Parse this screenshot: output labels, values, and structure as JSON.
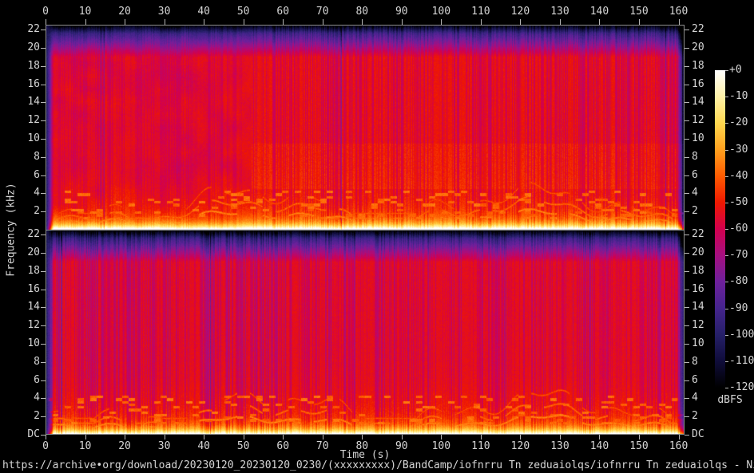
{
  "figure": {
    "bg": "#000000",
    "axis_color": "#8f8f8f",
    "tick_color": "#b8b8b8",
    "text_color": "#d6d6d6"
  },
  "top_axis": {
    "ticks": [
      "0",
      "10",
      "20",
      "30",
      "40",
      "50",
      "60",
      "70",
      "80",
      "90",
      "100",
      "110",
      "120",
      "130",
      "140",
      "150",
      "160"
    ]
  },
  "bottom_axis": {
    "label": "Time (s)",
    "ticks": [
      "0",
      "10",
      "20",
      "30",
      "40",
      "50",
      "60",
      "70",
      "80",
      "90",
      "100",
      "110",
      "120",
      "130",
      "140",
      "150",
      "160"
    ]
  },
  "freq_axis": {
    "label": "Frequency (kHz)",
    "channel1_ticks": [
      "22",
      "20",
      "18",
      "16",
      "14",
      "12",
      "10",
      "8",
      "6",
      "4",
      "2"
    ],
    "channel2_ticks": [
      "22",
      "20",
      "18",
      "16",
      "14",
      "12",
      "10",
      "8",
      "6",
      "4",
      "2",
      "DC"
    ]
  },
  "colorbar": {
    "unit_label": "dBFS",
    "ticks": [
      "+0",
      "-10",
      "-20",
      "-30",
      "-40",
      "-50",
      "-60",
      "-70",
      "-80",
      "-90",
      "-100",
      "-110",
      "-120"
    ]
  },
  "footer": {
    "file_url": "https://archive•org/download/20230120_20230120_0230/(xxxxxxxxx)/BandCamp/iofnrru Tn zeduaiolqs/iofnrru Tn zeduaiolqs - Nidgithm•flac"
  },
  "chart_data": {
    "type": "heatmap",
    "subtype": "audio-spectrogram",
    "channels": 2,
    "x": {
      "label": "Time (s)",
      "min": 0,
      "max": 161.5,
      "ticks": [
        0,
        10,
        20,
        30,
        40,
        50,
        60,
        70,
        80,
        90,
        100,
        110,
        120,
        130,
        140,
        150,
        160
      ]
    },
    "y": {
      "label": "Frequency (kHz)",
      "min": 0,
      "max": 22.05,
      "ticks": [
        22,
        20,
        18,
        16,
        14,
        12,
        10,
        8,
        6,
        4,
        2
      ],
      "dc_label": "DC"
    },
    "z": {
      "label": "dBFS",
      "min": -120,
      "max": 0,
      "ticks": [
        0,
        -10,
        -20,
        -30,
        -40,
        -50,
        -60,
        -70,
        -80,
        -90,
        -100,
        -110,
        -120
      ]
    },
    "colormap_stops": [
      [
        0,
        "#ffffff"
      ],
      [
        -10,
        "#fff2a8"
      ],
      [
        -20,
        "#ffd84f"
      ],
      [
        -30,
        "#ffa01e"
      ],
      [
        -40,
        "#ff5b00"
      ],
      [
        -50,
        "#ef1800"
      ],
      [
        -60,
        "#d2004e"
      ],
      [
        -70,
        "#a60f80"
      ],
      [
        -80,
        "#6e209c"
      ],
      [
        -90,
        "#45248d"
      ],
      [
        -100,
        "#251f68"
      ],
      [
        -110,
        "#0f0c3a"
      ],
      [
        -120,
        "#000000"
      ]
    ],
    "content_summary": "Two stacked channel spectrograms of the same track: dense red energy (~-50 dBFS) across 0-20 kHz with purple vertical beat striping; bright yellow/white bass band below ~1 kHz; orange melodic traces between 1-4.5 kHz; dark purple band above ~19.5 kHz; quiet dark start (~0-2 s) and fade-out after ~159.4 s; texture becomes more sharply striped in the top channel after ~52 s.",
    "render": {
      "seed": 7,
      "base_db": -51,
      "stripe_db": 26,
      "transition_s": 52,
      "fade_in_end_s": 2.0,
      "fade_out_start_s": 159.4,
      "hf_rolloff_start_khz": 19.0,
      "melody_band_khz": [
        0.75,
        5.3
      ],
      "plot_f_top_khz": 22.55
    }
  }
}
